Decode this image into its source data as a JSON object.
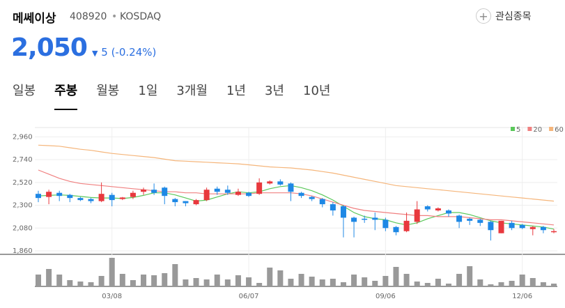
{
  "header": {
    "name": "메쎄이상",
    "code": "408920",
    "market": "KOSDAQ",
    "favorite": "관심종목",
    "price": "2,050",
    "change": "5",
    "change_pct": "(-0.24%)"
  },
  "tabs": [
    "일봉",
    "주봉",
    "월봉",
    "1일",
    "3개월",
    "1년",
    "3년",
    "10년"
  ],
  "chart_data": {
    "type": "candlestick",
    "categories": [
      null,
      null,
      null,
      null,
      null,
      null,
      null,
      "03/08",
      null,
      null,
      null,
      null,
      null,
      null,
      null,
      null,
      null,
      null,
      null,
      null,
      "06/07",
      null,
      null,
      null,
      null,
      null,
      null,
      null,
      null,
      null,
      null,
      null,
      null,
      "09/06",
      null,
      null,
      null,
      null,
      null,
      null,
      null,
      null,
      null,
      null,
      null,
      null,
      "12/06",
      null,
      null,
      null
    ],
    "open": [
      2410,
      2380,
      2420,
      2400,
      2370,
      2360,
      2340,
      2400,
      2360,
      2380,
      2430,
      2450,
      2470,
      2360,
      2340,
      2310,
      2350,
      2460,
      2450,
      2400,
      2420,
      2410,
      2510,
      2530,
      2510,
      2420,
      2380,
      2360,
      2310,
      2290,
      2180,
      2170,
      2180,
      2160,
      2090,
      2050,
      2140,
      2290,
      2250,
      2250,
      2200,
      2170,
      2160,
      2140,
      2030,
      2130,
      2110,
      2070,
      2090,
      2040
    ],
    "high": [
      2440,
      2450,
      2440,
      2410,
      2380,
      2370,
      2520,
      2420,
      2380,
      2440,
      2470,
      2510,
      2480,
      2370,
      2340,
      2360,
      2470,
      2480,
      2490,
      2460,
      2430,
      2560,
      2540,
      2550,
      2520,
      2430,
      2390,
      2370,
      2330,
      2300,
      2190,
      2200,
      2230,
      2180,
      2100,
      2230,
      2340,
      2300,
      2280,
      2260,
      2210,
      2180,
      2170,
      2150,
      2150,
      2150,
      2120,
      2100,
      2100,
      2070
    ],
    "low": [
      2330,
      2310,
      2340,
      2330,
      2340,
      2320,
      2330,
      2290,
      2350,
      2360,
      2400,
      2400,
      2310,
      2290,
      2290,
      2300,
      2340,
      2400,
      2400,
      2390,
      2380,
      2400,
      2500,
      2490,
      2340,
      2370,
      2340,
      2280,
      2200,
      1990,
      1990,
      2130,
      2060,
      2050,
      2010,
      2040,
      2120,
      2240,
      2240,
      2190,
      2080,
      2110,
      2100,
      1960,
      2030,
      2060,
      2070,
      2010,
      2030,
      2030
    ],
    "close": [
      2370,
      2430,
      2390,
      2370,
      2350,
      2340,
      2410,
      2350,
      2375,
      2420,
      2450,
      2420,
      2390,
      2330,
      2320,
      2350,
      2450,
      2430,
      2420,
      2430,
      2390,
      2520,
      2530,
      2500,
      2430,
      2390,
      2360,
      2310,
      2250,
      2180,
      2140,
      2160,
      2160,
      2080,
      2040,
      2150,
      2260,
      2260,
      2270,
      2220,
      2140,
      2150,
      2130,
      2060,
      2150,
      2080,
      2080,
      2090,
      2060,
      2050
    ],
    "volume": [
      17,
      25,
      17,
      9,
      7,
      6,
      15,
      41,
      18,
      9,
      17,
      16,
      19,
      32,
      10,
      12,
      10,
      17,
      10,
      16,
      13,
      5,
      27,
      23,
      11,
      18,
      14,
      10,
      11,
      6,
      17,
      13,
      8,
      15,
      28,
      18,
      7,
      5,
      11,
      4,
      18,
      29,
      10,
      3,
      6,
      8,
      17,
      12,
      6,
      4
    ],
    "up_color": "#e8383d",
    "down_color": "#1e88e5",
    "ma": [
      {
        "name": "5",
        "color": "#5ac85a",
        "values": [
          2390,
          2395,
          2400,
          2395,
          2385,
          2375,
          2370,
          2370,
          2365,
          2375,
          2395,
          2420,
          2420,
          2400,
          2370,
          2340,
          2350,
          2380,
          2410,
          2430,
          2420,
          2430,
          2460,
          2480,
          2490,
          2470,
          2440,
          2400,
          2350,
          2290,
          2230,
          2190,
          2170,
          2160,
          2130,
          2110,
          2130,
          2170,
          2200,
          2230,
          2230,
          2210,
          2180,
          2150,
          2130,
          2120,
          2110,
          2100,
          2090,
          2070
        ]
      },
      {
        "name": "20",
        "color": "#f08080",
        "values": [
          2640,
          2600,
          2560,
          2530,
          2510,
          2500,
          2490,
          2480,
          2470,
          2460,
          2450,
          2440,
          2430,
          2430,
          2420,
          2420,
          2410,
          2410,
          2410,
          2410,
          2410,
          2420,
          2420,
          2420,
          2420,
          2410,
          2390,
          2360,
          2330,
          2300,
          2270,
          2250,
          2240,
          2230,
          2220,
          2210,
          2200,
          2200,
          2190,
          2190,
          2190,
          2180,
          2170,
          2160,
          2160,
          2150,
          2140,
          2130,
          2120,
          2110
        ]
      },
      {
        "name": "60",
        "color": "#f5b57a",
        "values": [
          2880,
          2875,
          2870,
          2855,
          2840,
          2830,
          2815,
          2800,
          2790,
          2780,
          2770,
          2760,
          2745,
          2730,
          2725,
          2720,
          2715,
          2710,
          2705,
          2700,
          2690,
          2680,
          2670,
          2665,
          2660,
          2650,
          2640,
          2625,
          2610,
          2590,
          2570,
          2550,
          2530,
          2510,
          2490,
          2480,
          2470,
          2460,
          2450,
          2440,
          2430,
          2420,
          2410,
          2400,
          2390,
          2380,
          2370,
          2360,
          2350,
          2340
        ]
      }
    ],
    "volume_color": "#999999",
    "ylim": [
      1860,
      3050
    ],
    "yticks": [
      {
        "value": 1860,
        "label": "1,860"
      },
      {
        "value": 2080,
        "label": "2,080"
      },
      {
        "value": 2300,
        "label": "2,300"
      },
      {
        "value": 2520,
        "label": "2,520"
      },
      {
        "value": 2740,
        "label": "2,740"
      },
      {
        "value": 2960,
        "label": "2,960"
      }
    ],
    "grid": true
  }
}
